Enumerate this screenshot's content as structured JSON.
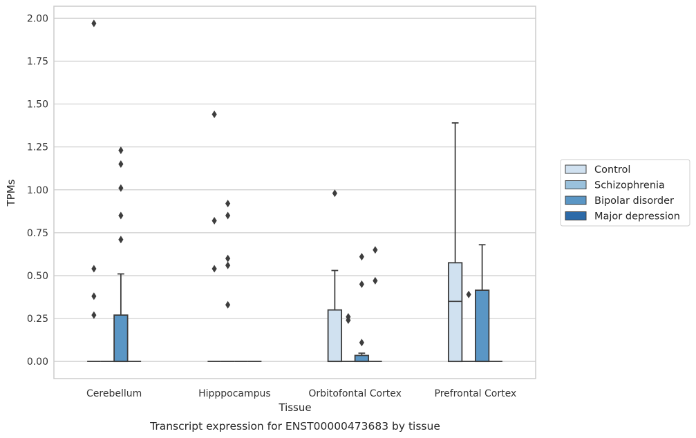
{
  "chart_data": {
    "type": "box",
    "title": "",
    "xlabel": "Tissue",
    "ylabel": "TPMs",
    "caption": "Transcript expression for ENST00000473683 by tissue",
    "categories": [
      "Cerebellum",
      "Hipppocampus",
      "Orbitofontal Cortex",
      "Prefrontal Cortex"
    ],
    "ylim": [
      -0.1,
      2.07
    ],
    "yticks": [
      0.0,
      0.25,
      0.5,
      0.75,
      1.0,
      1.25,
      1.5,
      1.75,
      2.0
    ],
    "ytick_labels": [
      "0.00",
      "0.25",
      "0.50",
      "0.75",
      "1.00",
      "1.25",
      "1.50",
      "1.75",
      "2.00"
    ],
    "grid": "horizontal",
    "legend_position": "right",
    "series": [
      {
        "name": "Control",
        "color": "#d0e1f0",
        "boxes": [
          {
            "min": 0,
            "q1": 0,
            "median": 0,
            "q3": 0,
            "max": 0,
            "outliers": [
              0.27,
              0.38,
              0.54,
              1.97
            ]
          },
          {
            "min": 0,
            "q1": 0,
            "median": 0,
            "q3": 0,
            "max": 0,
            "outliers": [
              0.54,
              0.82,
              1.44
            ]
          },
          {
            "min": 0,
            "q1": 0,
            "median": 0,
            "q3": 0.3,
            "max": 0.53,
            "outliers": [
              0.98
            ]
          },
          {
            "min": 0,
            "q1": 0,
            "median": 0.35,
            "q3": 0.575,
            "max": 1.39,
            "outliers": []
          }
        ]
      },
      {
        "name": "Schizophrenia",
        "color": "#9ac1dc",
        "boxes": [
          {
            "min": 0,
            "q1": 0,
            "median": 0,
            "q3": 0,
            "max": 0,
            "outliers": []
          },
          {
            "min": 0,
            "q1": 0,
            "median": 0,
            "q3": 0,
            "max": 0,
            "outliers": [
              0.33,
              0.56,
              0.6,
              0.85,
              0.92
            ]
          },
          {
            "min": 0,
            "q1": 0,
            "median": 0,
            "q3": 0,
            "max": 0,
            "outliers": [
              0.24,
              0.26
            ]
          },
          {
            "min": 0,
            "q1": 0,
            "median": 0,
            "q3": 0,
            "max": 0,
            "outliers": [
              0.39
            ]
          }
        ]
      },
      {
        "name": "Bipolar disorder",
        "color": "#5a96c5",
        "boxes": [
          {
            "min": 0,
            "q1": 0,
            "median": 0,
            "q3": 0.27,
            "max": 0.51,
            "outliers": [
              0.71,
              0.85,
              1.01,
              1.15,
              1.23
            ]
          },
          {
            "min": 0,
            "q1": 0,
            "median": 0,
            "q3": 0,
            "max": 0,
            "outliers": []
          },
          {
            "min": 0,
            "q1": 0,
            "median": 0,
            "q3": 0.035,
            "max": 0.048,
            "outliers": [
              0.11,
              0.45,
              0.61
            ]
          },
          {
            "min": 0,
            "q1": 0,
            "median": 0,
            "q3": 0.415,
            "max": 0.68,
            "outliers": []
          }
        ]
      },
      {
        "name": "Major depression",
        "color": "#2c6aa8",
        "boxes": [
          {
            "min": 0,
            "q1": 0,
            "median": 0,
            "q3": 0,
            "max": 0,
            "outliers": []
          },
          {
            "min": 0,
            "q1": 0,
            "median": 0,
            "q3": 0,
            "max": 0,
            "outliers": []
          },
          {
            "min": 0,
            "q1": 0,
            "median": 0,
            "q3": 0,
            "max": 0,
            "outliers": [
              0.47,
              0.65
            ]
          },
          {
            "min": 0,
            "q1": 0,
            "median": 0,
            "q3": 0,
            "max": 0,
            "outliers": []
          }
        ]
      }
    ]
  }
}
